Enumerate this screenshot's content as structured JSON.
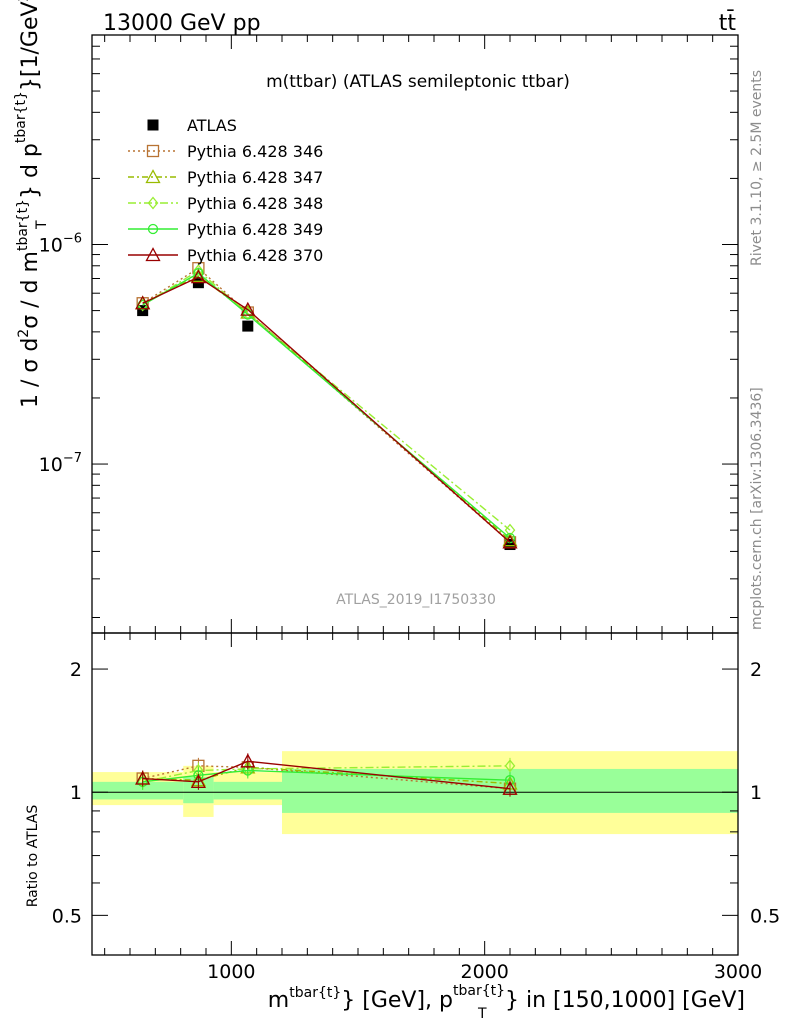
{
  "header": {
    "left": "13000 GeV pp",
    "right": "tt̄"
  },
  "side_labels": {
    "rivet": "Rivet 3.1.10, ≥ 2.5M events",
    "mcplots": "mcplots.cern.ch [arXiv:1306.3436]"
  },
  "plot_title": "m(ttbar) (ATLAS semileptonic ttbar)",
  "watermark": "ATLAS_2019_I1750330",
  "main_ylabel": "1 / σ d²σ / d m^{tbar{t}} d p_T^{tbar{t}}[1/GeV²]",
  "ratio_ylabel": "Ratio to ATLAS",
  "xlabel": "m^{tbar{t}} [GeV], p_T^{tbar{t}} in [150,1000] [GeV]",
  "chart_data": [
    {
      "type": "scatter",
      "panel": "main",
      "title": "m(ttbar) (ATLAS semileptonic ttbar)",
      "xlim": [
        450,
        3000
      ],
      "ylim": [
        1.7e-08,
        9e-06
      ],
      "yscale": "log",
      "y_ticklabels": [
        "10^{-6}",
        "10^{-7}"
      ],
      "x_ticklabels": [
        "1000",
        "2000",
        "3000"
      ],
      "legend_position": "top-left",
      "series": [
        {
          "name": "ATLAS",
          "color": "#000000",
          "marker": "filled-square",
          "x": [
            650,
            870,
            1065,
            2100
          ],
          "y": [
            5e-07,
            6.7e-07,
            4.25e-07,
            4.3e-08
          ]
        },
        {
          "name": "Pythia 6.428 346",
          "color": "#b87333",
          "marker": "open-square",
          "dash": "2,3",
          "x": [
            650,
            870,
            1065,
            2100
          ],
          "y": [
            5.4e-07,
            7.8e-07,
            4.9e-07,
            4.4e-08
          ]
        },
        {
          "name": "Pythia 6.428 347",
          "color": "#99bb00",
          "marker": "open-triangle",
          "dash": "6,3,2,3",
          "x": [
            650,
            870,
            1065,
            2100
          ],
          "y": [
            5.4e-07,
            7.2e-07,
            4.9e-07,
            4.5e-08
          ]
        },
        {
          "name": "Pythia 6.428 348",
          "color": "#99ee33",
          "marker": "open-diamond",
          "dash": "8,3,2,3",
          "x": [
            650,
            870,
            1065,
            2100
          ],
          "y": [
            5.3e-07,
            7.6e-07,
            4.85e-07,
            5e-08
          ]
        },
        {
          "name": "Pythia 6.428 349",
          "color": "#33ee33",
          "marker": "open-circle",
          "dash": "",
          "x": [
            650,
            870,
            1065,
            2100
          ],
          "y": [
            5.3e-07,
            7.4e-07,
            4.8e-07,
            4.6e-08
          ]
        },
        {
          "name": "Pythia 6.428 370",
          "color": "#990000",
          "marker": "open-triangle",
          "dash": "",
          "x": [
            650,
            870,
            1065,
            2100
          ],
          "y": [
            5.4e-07,
            7.1e-07,
            5.05e-07,
            4.4e-08
          ]
        }
      ]
    },
    {
      "type": "line",
      "panel": "ratio",
      "ylabel": "Ratio to ATLAS",
      "ylim": [
        0.4,
        2.45
      ],
      "yscale": "log",
      "y_ticklabels": [
        "0.5",
        "1",
        "2"
      ],
      "bands": {
        "bin_edges": [
          450,
          810,
          930,
          1200,
          3000
        ],
        "outer": [
          [
            0.93,
            1.12
          ],
          [
            0.87,
            1.16
          ],
          [
            0.93,
            1.12
          ],
          [
            0.79,
            1.26
          ]
        ],
        "inner": [
          [
            0.96,
            1.06
          ],
          [
            0.94,
            1.09
          ],
          [
            0.96,
            1.06
          ],
          [
            0.89,
            1.14
          ]
        ]
      },
      "series": [
        {
          "name": "Pythia 6.428 346",
          "x": [
            650,
            870,
            1065,
            2100
          ],
          "y": [
            1.08,
            1.16,
            1.15,
            1.02
          ]
        },
        {
          "name": "Pythia 6.428 347",
          "x": [
            650,
            870,
            1065,
            2100
          ],
          "y": [
            1.08,
            1.07,
            1.15,
            1.05
          ]
        },
        {
          "name": "Pythia 6.428 348",
          "x": [
            650,
            870,
            1065,
            2100
          ],
          "y": [
            1.06,
            1.13,
            1.14,
            1.16
          ]
        },
        {
          "name": "Pythia 6.428 349",
          "x": [
            650,
            870,
            1065,
            2100
          ],
          "y": [
            1.06,
            1.1,
            1.13,
            1.07
          ]
        },
        {
          "name": "Pythia 6.428 370",
          "x": [
            650,
            870,
            1065,
            2100
          ],
          "y": [
            1.08,
            1.06,
            1.19,
            1.02
          ]
        }
      ]
    }
  ]
}
